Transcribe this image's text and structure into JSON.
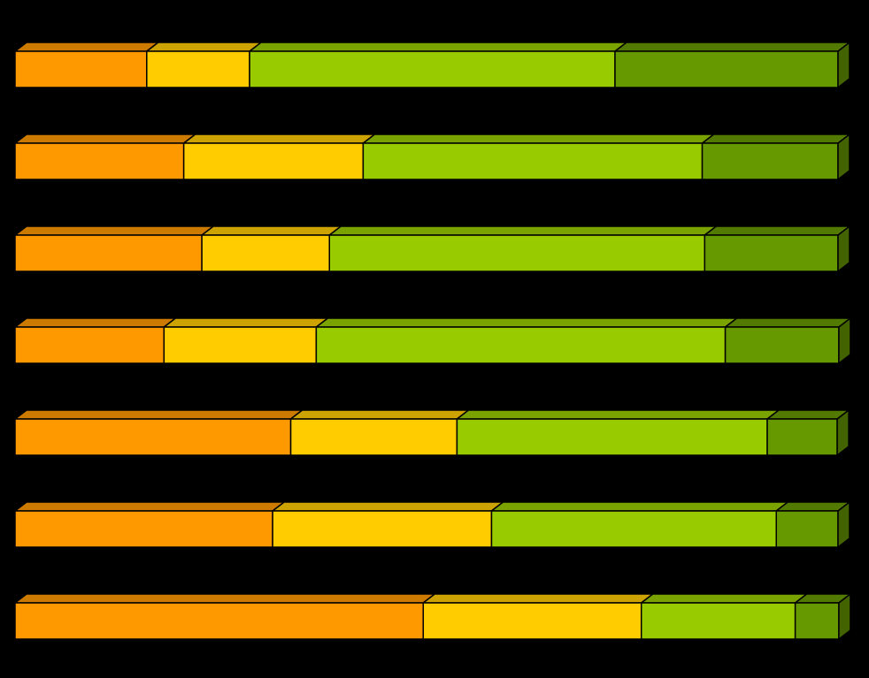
{
  "chart_data": {
    "type": "stacked-bar-3d",
    "orientation": "horizontal",
    "xlim": [
      0,
      100
    ],
    "series": [
      {
        "color": "#ff9900",
        "values": [
          16.0,
          20.5,
          22.7,
          18.1,
          33.5,
          31.3,
          49.6
        ]
      },
      {
        "color": "#ffcc00",
        "values": [
          12.5,
          21.8,
          15.5,
          18.5,
          20.2,
          26.6,
          26.5
        ]
      },
      {
        "color": "#99cc00",
        "values": [
          44.4,
          41.2,
          45.6,
          49.7,
          37.7,
          34.6,
          18.7
        ]
      },
      {
        "color": "#669900",
        "values": [
          27.1,
          16.5,
          16.2,
          13.8,
          8.5,
          7.5,
          5.3
        ]
      }
    ]
  }
}
